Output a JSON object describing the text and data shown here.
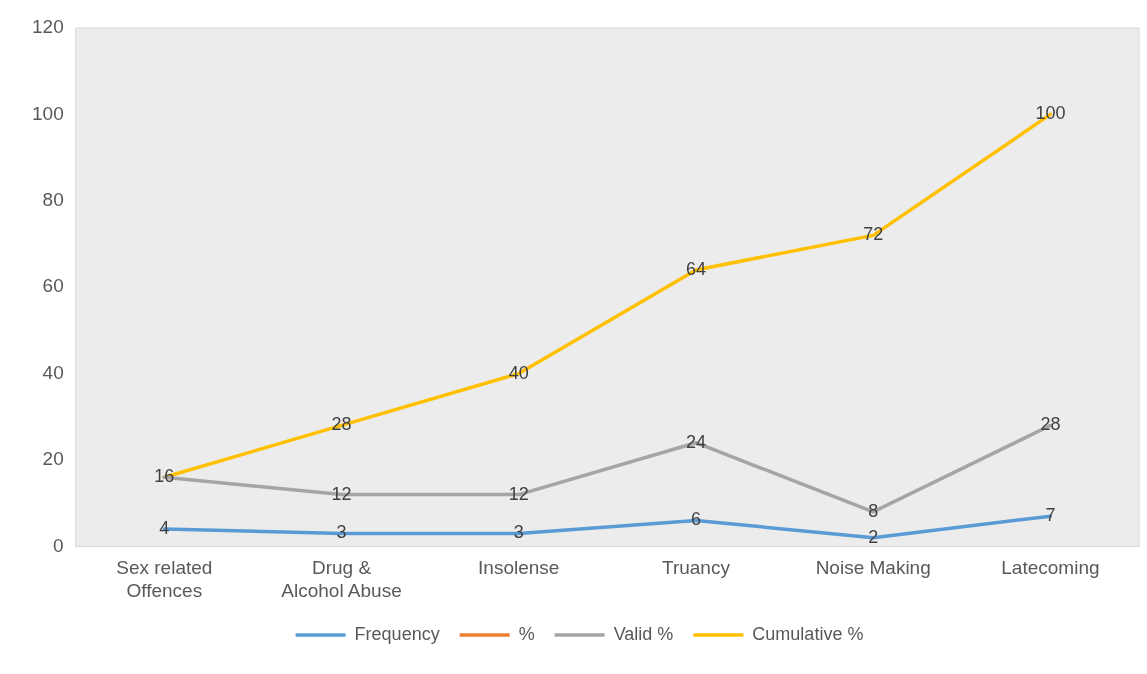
{
  "chart_data": {
    "type": "line",
    "categories": [
      "Sex related Offences",
      "Drug & Alcohol Abuse",
      "Insolense",
      "Truancy",
      "Noise Making",
      "Latecoming"
    ],
    "series": [
      {
        "name": "Frequency",
        "color": "#5b9bd5",
        "values": [
          4,
          3,
          3,
          6,
          2,
          7
        ],
        "value_labels": [
          "4",
          "3",
          "3",
          "6",
          "2",
          "7"
        ]
      },
      {
        "name": "%",
        "color": "#ed7d31",
        "values": [
          null,
          null,
          null,
          null,
          null,
          null
        ]
      },
      {
        "name": "Valid %",
        "color": "#a5a5a5",
        "values": [
          16,
          12,
          12,
          24,
          8,
          28
        ],
        "value_labels": [
          null,
          "12",
          "12",
          "24",
          "8",
          "28"
        ]
      },
      {
        "name": "Cumulative %",
        "color": "#ffc000",
        "values": [
          16,
          28,
          40,
          64,
          72,
          100
        ],
        "value_labels": [
          "16",
          "28",
          "40",
          "64",
          "72",
          "100"
        ]
      }
    ],
    "ylim": [
      0,
      120
    ],
    "yticks": [
      0,
      20,
      40,
      60,
      80,
      100,
      120
    ],
    "legend": "bottom",
    "marker": "none",
    "line_style": "solid"
  }
}
